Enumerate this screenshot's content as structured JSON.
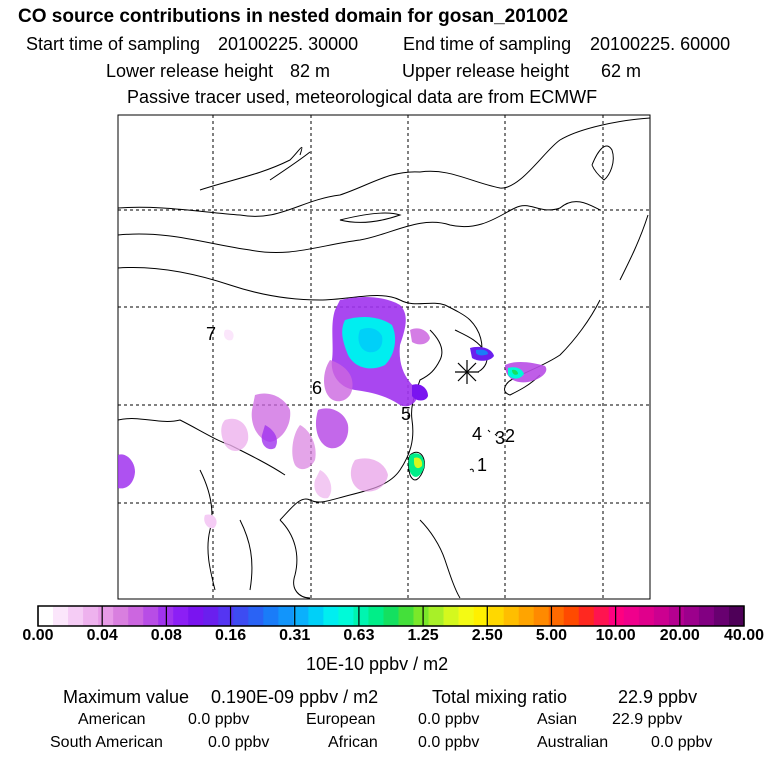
{
  "header": {
    "title": "CO  source contributions in nested domain for gosan_201002",
    "start_label": "Start time of sampling",
    "start_value": "20100225. 30000",
    "end_label": "End time of sampling",
    "end_value": "20100225. 60000",
    "lower_label": "Lower release height",
    "lower_value": "82 m",
    "upper_label": "Upper release height",
    "upper_value": "62 m",
    "note": "Passive tracer used, meteorological data are from ECMWF"
  },
  "map": {
    "region_labels": [
      "7",
      "6",
      "5",
      "4",
      "3",
      "2",
      "1"
    ],
    "receptor_icon": "asterisk-star-icon"
  },
  "colorbar": {
    "unit": "10E-10 ppbv / m2",
    "ticks": [
      "0.00",
      "0.04",
      "0.08",
      "0.16",
      "0.31",
      "0.63",
      "1.25",
      "2.50",
      "5.00",
      "10.00",
      "20.00",
      "40.00"
    ],
    "colors": [
      "#ffffff",
      "#fbe6fb",
      "#f5ccf5",
      "#eeb2ee",
      "#e79be7",
      "#d97fdf",
      "#cc66e0",
      "#b84de6",
      "#a033ee",
      "#8c1ff5",
      "#7a14f0",
      "#6a1fee",
      "#5535f2",
      "#3d4cf2",
      "#2a63f5",
      "#1a7cf8",
      "#1295fb",
      "#0bb0fc",
      "#00d0f8",
      "#00eef0",
      "#00fad8",
      "#00f5b0",
      "#00ee88",
      "#14e060",
      "#44e03a",
      "#7ae82a",
      "#a8f028",
      "#d4f81e",
      "#f4fa14",
      "#fff000",
      "#ffd800",
      "#ffbe00",
      "#ffa400",
      "#ff8a00",
      "#ff6a00",
      "#ff4a00",
      "#ff2820",
      "#ff1450",
      "#ff0080",
      "#f0008c",
      "#e0008c",
      "#cc0090",
      "#b40090",
      "#9c008c",
      "#820082",
      "#680070",
      "#4e0058"
    ]
  },
  "stats": {
    "max_label": "Maximum value",
    "max_value": "0.190E-09 ppbv / m2",
    "total_label": "Total mixing ratio",
    "total_value": "22.9 ppbv",
    "regions": [
      {
        "name": "American",
        "value": "0.0 ppbv"
      },
      {
        "name": "European",
        "value": "0.0 ppbv"
      },
      {
        "name": "Asian",
        "value": "22.9 ppbv"
      },
      {
        "name": "South American",
        "value": "0.0 ppbv"
      },
      {
        "name": "African",
        "value": "0.0 ppbv"
      },
      {
        "name": "Australian",
        "value": "0.0 ppbv"
      }
    ]
  }
}
